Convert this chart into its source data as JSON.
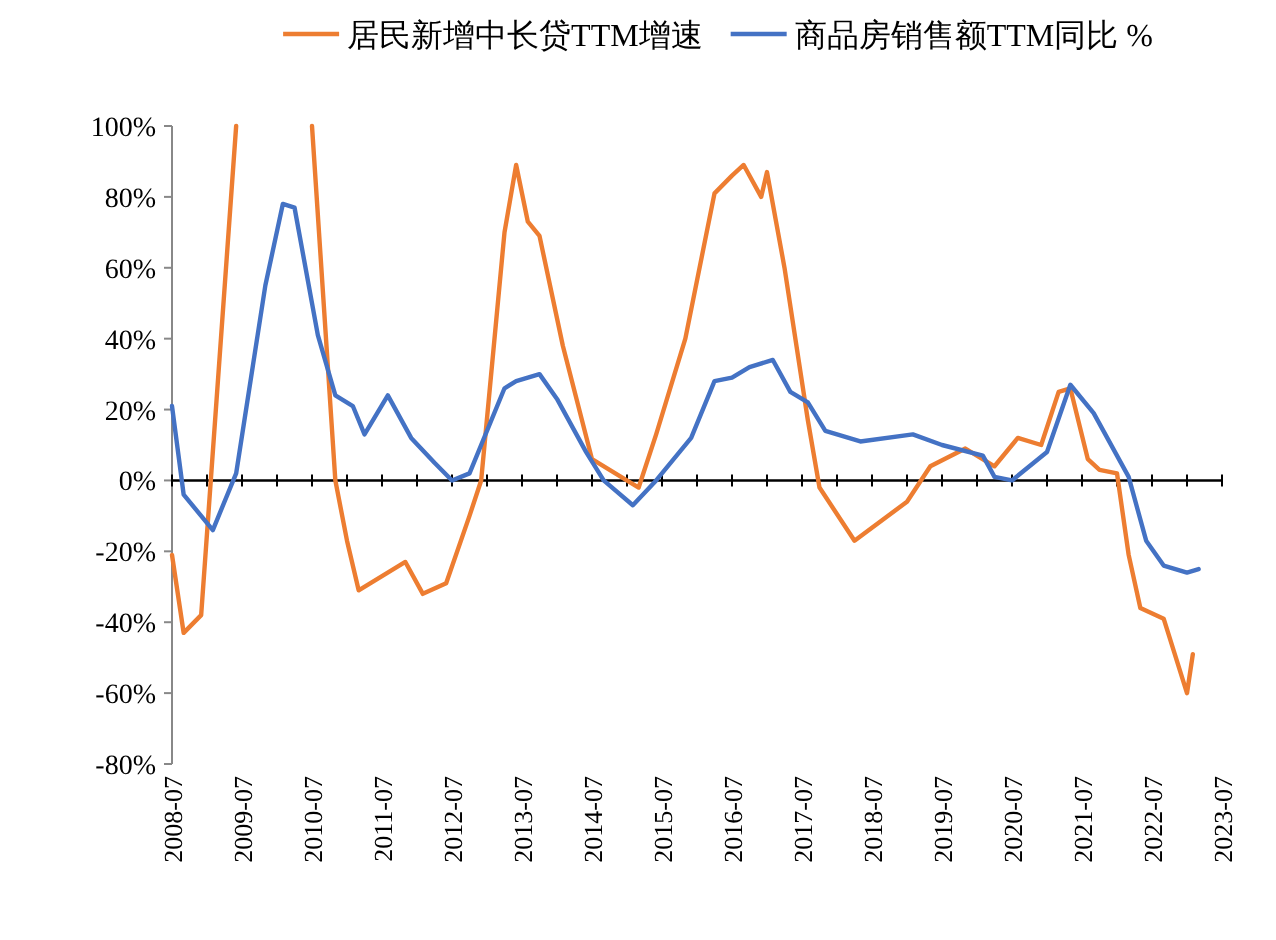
{
  "chart_data": {
    "type": "line",
    "legend": "top",
    "marker": "none",
    "line_style": "solid",
    "xlim": [
      "2008-07",
      "2023-07"
    ],
    "xticks": [
      {
        "value": "2008-07",
        "label": "2008-07"
      },
      {
        "value": "2009-01",
        "label": null
      },
      {
        "value": "2009-07",
        "label": "2009-07"
      },
      {
        "value": "2010-01",
        "label": null
      },
      {
        "value": "2010-07",
        "label": "2010-07"
      },
      {
        "value": "2011-01",
        "label": null
      },
      {
        "value": "2011-07",
        "label": "2011-07"
      },
      {
        "value": "2012-01",
        "label": null
      },
      {
        "value": "2012-07",
        "label": "2012-07"
      },
      {
        "value": "2013-01",
        "label": null
      },
      {
        "value": "2013-07",
        "label": "2013-07"
      },
      {
        "value": "2014-01",
        "label": null
      },
      {
        "value": "2014-07",
        "label": "2014-07"
      },
      {
        "value": "2015-01",
        "label": null
      },
      {
        "value": "2015-07",
        "label": "2015-07"
      },
      {
        "value": "2016-01",
        "label": null
      },
      {
        "value": "2016-07",
        "label": "2016-07"
      },
      {
        "value": "2017-01",
        "label": null
      },
      {
        "value": "2017-07",
        "label": "2017-07"
      },
      {
        "value": "2018-01",
        "label": null
      },
      {
        "value": "2018-07",
        "label": "2018-07"
      },
      {
        "value": "2019-01",
        "label": null
      },
      {
        "value": "2019-07",
        "label": "2019-07"
      },
      {
        "value": "2020-01",
        "label": null
      },
      {
        "value": "2020-07",
        "label": "2020-07"
      },
      {
        "value": "2021-01",
        "label": null
      },
      {
        "value": "2021-07",
        "label": "2021-07"
      },
      {
        "value": "2022-01",
        "label": null
      },
      {
        "value": "2022-07",
        "label": "2022-07"
      },
      {
        "value": "2023-01",
        "label": null
      },
      {
        "value": "2023-07",
        "label": "2023-07"
      }
    ],
    "ylim": [
      -80,
      100
    ],
    "yticks": [
      {
        "value": -80,
        "label": "-80%"
      },
      {
        "value": -60,
        "label": "-60%"
      },
      {
        "value": -40,
        "label": "-40%"
      },
      {
        "value": -20,
        "label": "-20%"
      },
      {
        "value": 0,
        "label": "0%"
      },
      {
        "value": 20,
        "label": "20%"
      },
      {
        "value": 40,
        "label": "40%"
      },
      {
        "value": 60,
        "label": "60%"
      },
      {
        "value": 80,
        "label": "80%"
      },
      {
        "value": 100,
        "label": "100%"
      }
    ],
    "series": [
      {
        "name": "居民新增中长贷TTM增速",
        "color": "#ed7d31",
        "x": [
          "2008-07",
          "2008-09",
          "2008-12",
          "2009-06",
          "2010-01",
          "2010-07",
          "2010-11",
          "2011-01",
          "2011-03",
          "2011-07",
          "2011-11",
          "2012-02",
          "2012-06",
          "2012-10",
          "2012-12",
          "2013-04",
          "2013-06",
          "2013-08",
          "2013-10",
          "2014-02",
          "2014-07",
          "2015-03",
          "2015-06",
          "2015-11",
          "2016-04",
          "2016-07",
          "2016-09",
          "2016-12",
          "2017-01",
          "2017-04",
          "2017-08",
          "2017-10",
          "2018-04",
          "2019-01",
          "2019-05",
          "2019-11",
          "2020-04",
          "2020-08",
          "2020-12",
          "2021-03",
          "2021-05",
          "2021-08",
          "2021-10",
          "2022-01",
          "2022-03",
          "2022-05",
          "2022-09",
          "2023-01",
          "2023-02"
        ],
        "values": [
          -21,
          -43,
          -38,
          100,
          null,
          100,
          0,
          -17,
          -31,
          -27,
          -23,
          -32,
          -29,
          -10,
          0,
          70,
          89,
          73,
          69,
          38,
          6,
          -2,
          13,
          40,
          81,
          86,
          89,
          80,
          87,
          60,
          17,
          -2,
          -17,
          -6,
          4,
          9,
          4,
          12,
          10,
          25,
          26,
          6,
          3,
          2,
          -21,
          -36,
          -39,
          -60,
          -49
        ]
      },
      {
        "name": "商品房销售额TTM同比 %",
        "color": "#4472c4",
        "x": [
          "2008-07",
          "2008-09",
          "2009-02",
          "2009-06",
          "2009-11",
          "2010-02",
          "2010-04",
          "2010-08",
          "2010-11",
          "2011-02",
          "2011-04",
          "2011-08",
          "2011-12",
          "2012-04",
          "2012-07",
          "2012-10",
          "2013-04",
          "2013-06",
          "2013-10",
          "2014-01",
          "2014-06",
          "2014-09",
          "2015-02",
          "2015-06",
          "2015-12",
          "2016-04",
          "2016-07",
          "2016-10",
          "2017-02",
          "2017-05",
          "2017-08",
          "2017-11",
          "2018-05",
          "2019-02",
          "2019-07",
          "2020-02",
          "2020-04",
          "2020-07",
          "2021-01",
          "2021-05",
          "2021-09",
          "2022-03",
          "2022-06",
          "2022-09",
          "2023-01",
          "2023-03"
        ],
        "values": [
          21,
          -4,
          -14,
          2,
          55,
          78,
          77,
          41,
          24,
          21,
          13,
          24,
          12,
          5,
          0,
          2,
          26,
          28,
          30,
          23,
          8,
          0,
          -7,
          0,
          12,
          28,
          29,
          32,
          34,
          25,
          22,
          14,
          11,
          13,
          10,
          7,
          1,
          0,
          8,
          27,
          19,
          1,
          -17,
          -24,
          -26,
          -25
        ]
      }
    ]
  }
}
